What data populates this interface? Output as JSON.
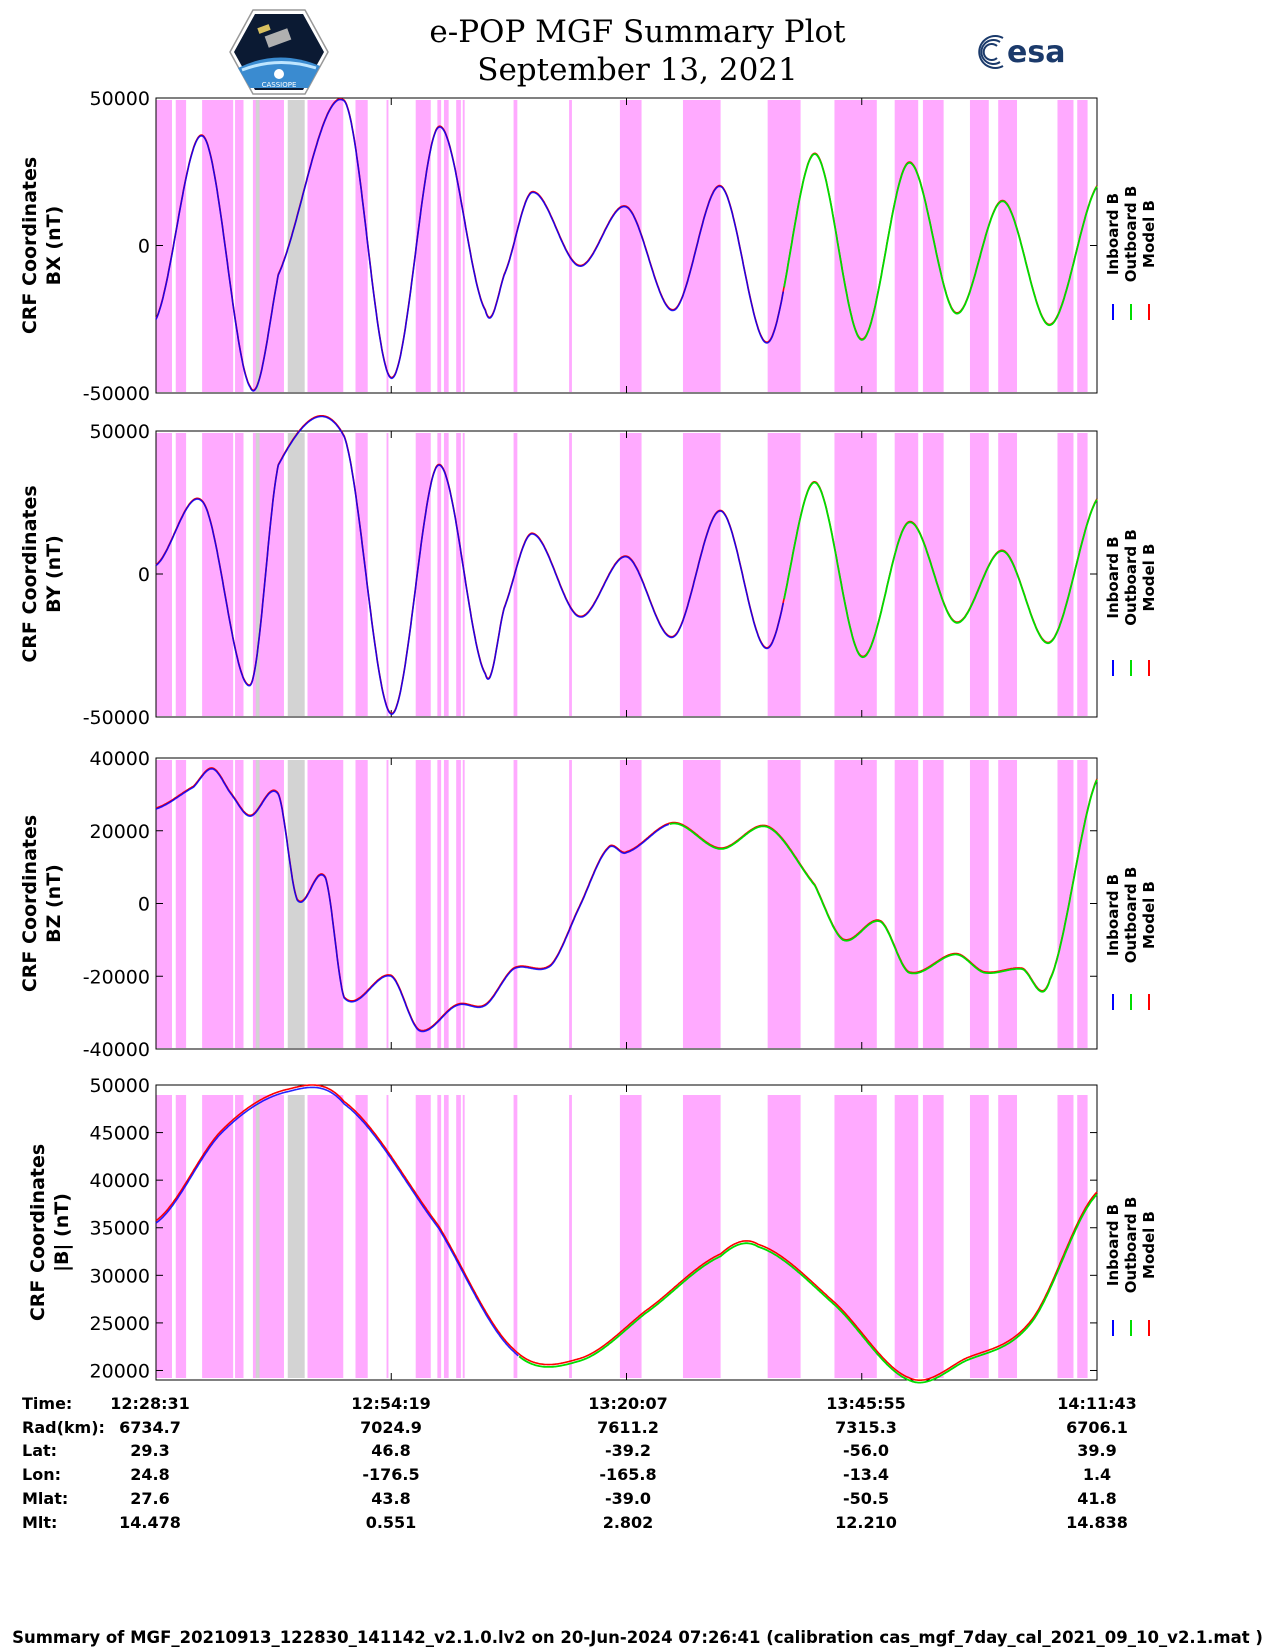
{
  "header": {
    "title_line1": "e-POP MGF Summary Plot",
    "title_line2": "September 13, 2021",
    "logo_left_text": "CASSIOPE",
    "logo_right_text": "esa"
  },
  "colors": {
    "inboard": "#0000ff",
    "outboard": "#00dd00",
    "model": "#ff0000",
    "shading": "#ffaaff",
    "gray": "#d3d3d3"
  },
  "chart_data": [
    {
      "type": "line",
      "ylabel_line1": "CRF Coordinates",
      "ylabel_line2": "BX (nT)",
      "ylim": [
        -50000,
        50000
      ],
      "yticks": [
        50000,
        0,
        -50000
      ],
      "yticklabels": [
        "50000",
        "0",
        "-50000"
      ],
      "legend": [
        "Inboard B",
        "Outboard B",
        "Model B"
      ],
      "key_x": [
        0,
        0.05,
        0.1,
        0.13,
        0.2,
        0.25,
        0.3,
        0.35,
        0.37,
        0.4,
        0.45,
        0.5,
        0.55,
        0.6,
        0.65,
        0.7,
        0.75,
        0.8,
        0.85,
        0.9,
        0.95,
        1
      ],
      "key_y": [
        -25000,
        37000,
        -48000,
        -10000,
        49000,
        -45000,
        40000,
        -22000,
        -10000,
        18000,
        -7000,
        13000,
        -22000,
        20000,
        -33000,
        31000,
        -32000,
        28000,
        -23000,
        15000,
        -27000,
        20000
      ],
      "outboard_from": 0.667
    },
    {
      "type": "line",
      "ylabel_line1": "CRF Coordinates",
      "ylabel_line2": "BY (nT)",
      "ylim": [
        -50000,
        50000
      ],
      "yticks": [
        50000,
        0,
        -50000
      ],
      "yticklabels": [
        "50000",
        "0",
        "-50000"
      ],
      "legend": [
        "Inboard B",
        "Outboard B",
        "Model B"
      ],
      "key_x": [
        0,
        0.05,
        0.1,
        0.13,
        0.2,
        0.25,
        0.3,
        0.35,
        0.37,
        0.4,
        0.45,
        0.5,
        0.55,
        0.6,
        0.65,
        0.7,
        0.75,
        0.8,
        0.85,
        0.9,
        0.95,
        1
      ],
      "key_y": [
        3000,
        25000,
        -39000,
        38000,
        48000,
        -49000,
        38000,
        -35000,
        -12000,
        14000,
        -15000,
        6000,
        -22000,
        22000,
        -26000,
        32000,
        -29000,
        18000,
        -17000,
        8000,
        -24000,
        26000
      ],
      "outboard_from": 0.667
    },
    {
      "type": "line",
      "ylabel_line1": "CRF Coordinates",
      "ylabel_line2": "BZ (nT)",
      "ylim": [
        -40000,
        40000
      ],
      "yticks": [
        40000,
        20000,
        0,
        -20000,
        -40000
      ],
      "yticklabels": [
        "40000",
        "20000",
        "0",
        "-20000",
        "-40000"
      ],
      "legend": [
        "Inboard B",
        "Outboard B",
        "Model B"
      ],
      "key_x": [
        0,
        0.04,
        0.06,
        0.08,
        0.1,
        0.13,
        0.15,
        0.18,
        0.2,
        0.25,
        0.28,
        0.32,
        0.35,
        0.38,
        0.42,
        0.45,
        0.48,
        0.5,
        0.55,
        0.6,
        0.65,
        0.7,
        0.73,
        0.77,
        0.8,
        0.85,
        0.88,
        0.92,
        0.95,
        1
      ],
      "key_y": [
        26000,
        32000,
        37000,
        30000,
        24000,
        30000,
        1000,
        7000,
        -26000,
        -20000,
        -35000,
        -28000,
        -28000,
        -18000,
        -17000,
        -1000,
        15000,
        14000,
        22000,
        15000,
        21000,
        5000,
        -10000,
        -5000,
        -19000,
        -14000,
        -19000,
        -18000,
        -21000,
        34000
      ],
      "outboard_from": 0.545
    },
    {
      "type": "line",
      "ylabel_line1": "CRF Coordinates",
      "ylabel_line2": "|B| (nT)",
      "ylim": [
        19000,
        50000
      ],
      "yticks": [
        50000,
        45000,
        40000,
        35000,
        30000,
        25000,
        20000
      ],
      "yticklabels": [
        "50000",
        "45000",
        "40000",
        "35000",
        "30000",
        "25000",
        "20000"
      ],
      "legend": [
        "Inboard B",
        "Outboard B",
        "Model B"
      ],
      "key_x": [
        0,
        0.07,
        0.14,
        0.2,
        0.3,
        0.38,
        0.45,
        0.52,
        0.6,
        0.64,
        0.72,
        0.8,
        0.86,
        0.93,
        1
      ],
      "key_y": [
        35500,
        45000,
        49300,
        48000,
        35000,
        22000,
        21000,
        26000,
        32000,
        33000,
        27000,
        19000,
        21000,
        25000,
        38500
      ],
      "outboard_from": 0.385
    }
  ],
  "shading": {
    "pink": [
      [
        0.0,
        0.017
      ],
      [
        0.021,
        0.032
      ],
      [
        0.049,
        0.082
      ],
      [
        0.084,
        0.093
      ],
      [
        0.103,
        0.136
      ],
      [
        0.161,
        0.199
      ],
      [
        0.212,
        0.225
      ],
      [
        0.245,
        0.247
      ],
      [
        0.276,
        0.292
      ],
      [
        0.299,
        0.303
      ],
      [
        0.306,
        0.311
      ],
      [
        0.319,
        0.324
      ],
      [
        0.326,
        0.328
      ],
      [
        0.38,
        0.384
      ],
      [
        0.439,
        0.442
      ],
      [
        0.493,
        0.516
      ],
      [
        0.56,
        0.6
      ],
      [
        0.65,
        0.685
      ],
      [
        0.721,
        0.766
      ],
      [
        0.785,
        0.81
      ],
      [
        0.815,
        0.837
      ],
      [
        0.865,
        0.885
      ],
      [
        0.895,
        0.915
      ],
      [
        0.958,
        0.975
      ],
      [
        0.979,
        0.99
      ]
    ],
    "gray": [
      [
        0.106,
        0.11
      ],
      [
        0.14,
        0.158
      ]
    ]
  },
  "xaxis": {
    "ticks": [
      0,
      0.25,
      0.5,
      0.75,
      1
    ]
  },
  "info_table": {
    "labels": [
      "Time:",
      "Rad(km):",
      "Lat:",
      "Lon:",
      "Mlat:",
      "Mlt:"
    ],
    "columns": [
      [
        "12:28:31",
        "6734.7",
        "29.3",
        "24.8",
        "27.6",
        "14.478"
      ],
      [
        "12:54:19",
        "7024.9",
        "46.8",
        "-176.5",
        "43.8",
        "0.551"
      ],
      [
        "13:20:07",
        "7611.2",
        "-39.2",
        "-165.8",
        "-39.0",
        "2.802"
      ],
      [
        "13:45:55",
        "7315.3",
        "-56.0",
        "-13.4",
        "-50.5",
        "12.210"
      ],
      [
        "14:11:43",
        "6706.1",
        "39.9",
        "1.4",
        "41.8",
        "14.838"
      ]
    ]
  },
  "footer": "Summary of MGF_20210913_122830_141142_v2.1.0.lv2 on 20-Jun-2024 07:26:41 (calibration cas_mgf_7day_cal_2021_09_10_v2.1.mat )"
}
